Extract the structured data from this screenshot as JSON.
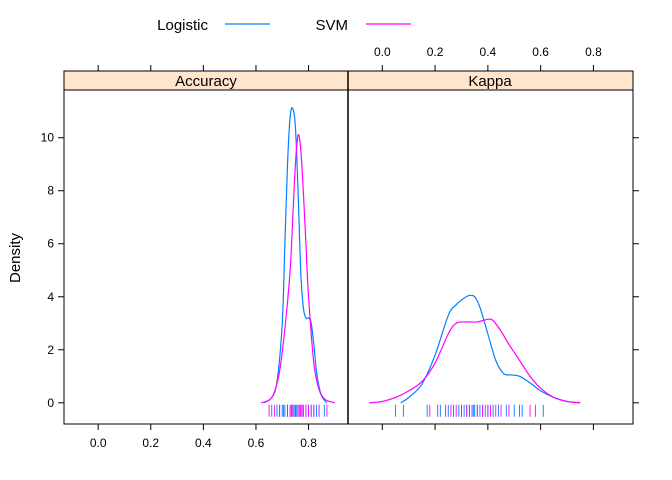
{
  "chart_data": {
    "type": "line",
    "chart_kind": "density",
    "ylabel": "Density",
    "legend": {
      "placement": "top",
      "items": [
        {
          "name": "Logistic",
          "color": "#0080ff"
        },
        {
          "name": "SVM",
          "color": "#ff00ff"
        }
      ]
    },
    "panels": [
      {
        "title": "Accuracy",
        "xlim": [
          -0.13,
          0.95
        ],
        "ylim": [
          -0.8,
          11.8
        ],
        "x_ticks": [
          0.0,
          0.2,
          0.4,
          0.6,
          0.8
        ],
        "x_tick_labels": [
          "0.0",
          "0.2",
          "0.4",
          "0.6",
          "0.8"
        ],
        "y_ticks": [
          0,
          2,
          4,
          6,
          8,
          10
        ],
        "y_tick_labels": [
          "0",
          "2",
          "4",
          "6",
          "8",
          "10"
        ],
        "series": [
          {
            "name": "Logistic",
            "color": "#0080ff",
            "x": [
              0.63,
              0.66,
              0.68,
              0.7,
              0.71,
              0.72,
              0.73,
              0.74,
              0.75,
              0.76,
              0.77,
              0.78,
              0.79,
              0.8,
              0.81,
              0.82,
              0.83,
              0.84,
              0.85,
              0.86,
              0.87
            ],
            "y": [
              0.0,
              0.2,
              0.8,
              3.0,
              6.0,
              9.0,
              10.8,
              11.1,
              10.4,
              8.0,
              5.0,
              3.6,
              3.2,
              3.2,
              3.0,
              2.2,
              1.2,
              0.6,
              0.25,
              0.1,
              0.0
            ]
          },
          {
            "name": "SVM",
            "color": "#ff00ff",
            "x": [
              0.62,
              0.65,
              0.67,
              0.69,
              0.71,
              0.73,
              0.74,
              0.75,
              0.76,
              0.77,
              0.78,
              0.79,
              0.8,
              0.82,
              0.84,
              0.86,
              0.88,
              0.9
            ],
            "y": [
              0.0,
              0.1,
              0.4,
              1.2,
              2.8,
              5.0,
              7.0,
              9.0,
              10.1,
              9.6,
              8.0,
              6.0,
              4.0,
              1.5,
              0.5,
              0.15,
              0.05,
              0.0
            ]
          }
        ],
        "rug": {
          "Logistic": [
            0.66,
            0.68,
            0.69,
            0.7,
            0.71,
            0.72,
            0.73,
            0.735,
            0.74,
            0.745,
            0.75,
            0.755,
            0.76,
            0.77,
            0.78,
            0.79,
            0.8,
            0.81,
            0.82,
            0.83,
            0.84,
            0.86
          ],
          "SVM": [
            0.65,
            0.67,
            0.69,
            0.705,
            0.72,
            0.73,
            0.74,
            0.75,
            0.76,
            0.765,
            0.77,
            0.775,
            0.78,
            0.79,
            0.8,
            0.81,
            0.82,
            0.84,
            0.87
          ]
        }
      },
      {
        "title": "Kappa",
        "xlim": [
          -0.13,
          0.95
        ],
        "ylim": [
          -0.8,
          11.8
        ],
        "x_ticks": [
          0.0,
          0.2,
          0.4,
          0.6,
          0.8
        ],
        "x_tick_labels": [
          "0.0",
          "0.2",
          "0.4",
          "0.6",
          "0.8"
        ],
        "series": [
          {
            "name": "Logistic",
            "color": "#0080ff",
            "x": [
              0.07,
              0.1,
              0.15,
              0.2,
              0.25,
              0.28,
              0.31,
              0.33,
              0.35,
              0.37,
              0.4,
              0.43,
              0.46,
              0.49,
              0.52,
              0.56,
              0.6,
              0.65,
              0.7,
              0.75
            ],
            "y": [
              0.0,
              0.2,
              0.7,
              1.8,
              3.3,
              3.7,
              3.95,
              4.05,
              4.0,
              3.6,
              2.6,
              1.6,
              1.1,
              1.05,
              1.0,
              0.75,
              0.45,
              0.2,
              0.05,
              0.0
            ]
          },
          {
            "name": "SVM",
            "color": "#ff00ff",
            "x": [
              -0.05,
              0.0,
              0.05,
              0.1,
              0.15,
              0.2,
              0.25,
              0.28,
              0.32,
              0.36,
              0.4,
              0.42,
              0.45,
              0.48,
              0.52,
              0.56,
              0.6,
              0.65,
              0.7,
              0.75
            ],
            "y": [
              0.0,
              0.05,
              0.2,
              0.45,
              0.8,
              1.5,
              2.6,
              3.0,
              3.05,
              3.05,
              3.15,
              3.1,
              2.7,
              2.2,
              1.6,
              1.0,
              0.55,
              0.2,
              0.05,
              0.0
            ]
          }
        ],
        "rug": {
          "Logistic": [
            0.08,
            0.17,
            0.22,
            0.25,
            0.27,
            0.29,
            0.3,
            0.31,
            0.32,
            0.33,
            0.34,
            0.35,
            0.36,
            0.37,
            0.38,
            0.39,
            0.4,
            0.42,
            0.44,
            0.47,
            0.5,
            0.53,
            0.61
          ],
          "SVM": [
            0.05,
            0.18,
            0.21,
            0.24,
            0.26,
            0.28,
            0.3,
            0.32,
            0.33,
            0.345,
            0.36,
            0.38,
            0.4,
            0.41,
            0.43,
            0.45,
            0.48,
            0.52,
            0.56,
            0.58
          ]
        }
      }
    ]
  }
}
